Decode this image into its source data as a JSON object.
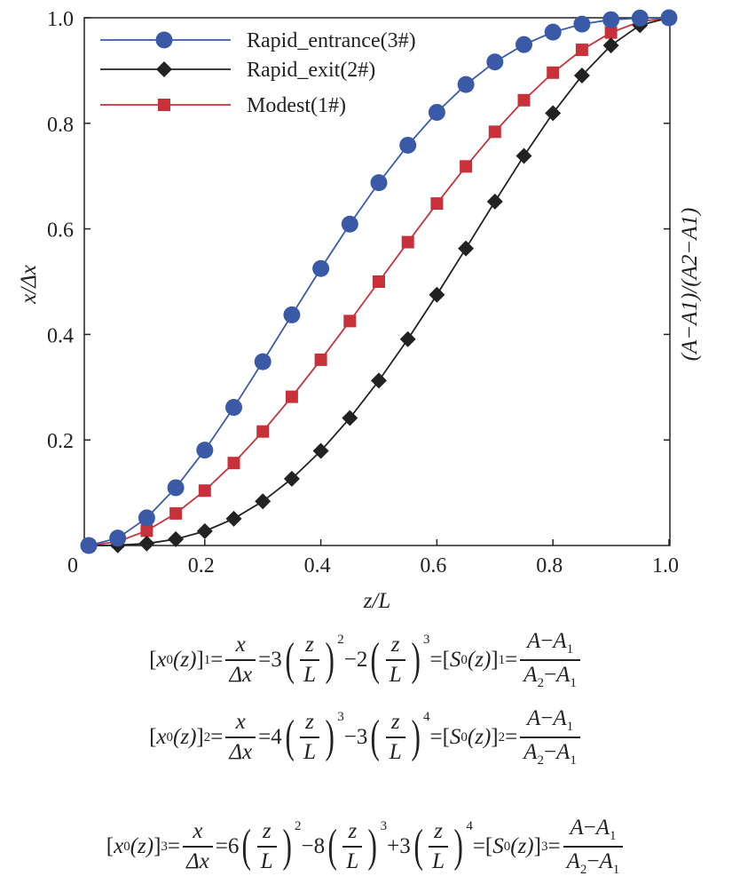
{
  "chart_data": {
    "type": "line",
    "xlabel": "z/L",
    "ylabel": "x/Δx",
    "ylabel_right": "(A−A1)/(A2−A1)",
    "xlim": [
      0,
      1
    ],
    "ylim": [
      0,
      1
    ],
    "grid": false,
    "legend_position": "top-left",
    "x_ticks": [
      "0",
      "0.2",
      "0.4",
      "0.6",
      "0.8",
      "1.0"
    ],
    "x_tick_values": [
      0,
      0.2,
      0.4,
      0.6,
      0.8,
      1.0
    ],
    "y_ticks": [
      "0.2",
      "0.4",
      "0.6",
      "0.8",
      "1.0"
    ],
    "y_tick_values": [
      0.2,
      0.4,
      0.6,
      0.8,
      1.0
    ],
    "x": [
      0,
      0.05,
      0.1,
      0.15,
      0.2,
      0.25,
      0.3,
      0.35,
      0.4,
      0.45,
      0.5,
      0.55,
      0.6,
      0.65,
      0.7,
      0.75,
      0.8,
      0.85,
      0.9,
      0.95,
      1.0
    ],
    "series": [
      {
        "name": "Rapid_entrance(3#)",
        "color": "#3a5aa8",
        "marker": "circle",
        "values": [
          0,
          0.014,
          0.0523,
          0.1095,
          0.1808,
          0.2617,
          0.3483,
          0.437,
          0.5248,
          0.609,
          0.6875,
          0.7585,
          0.8208,
          0.8735,
          0.9163,
          0.9492,
          0.9728,
          0.988,
          0.9963,
          0.9995,
          1.0
        ]
      },
      {
        "name": "Rapid_exit(2#)",
        "color": "#222222",
        "marker": "diamond",
        "values": [
          0,
          0.0005,
          0.0037,
          0.012,
          0.0272,
          0.0508,
          0.0837,
          0.1265,
          0.1792,
          0.2415,
          0.3125,
          0.391,
          0.4752,
          0.563,
          0.6517,
          0.7383,
          0.8192,
          0.8905,
          0.9477,
          0.986,
          1.0
        ]
      },
      {
        "name": "Modest(1#)",
        "color": "#c8313a",
        "marker": "square",
        "values": [
          0,
          0.0073,
          0.028,
          0.0608,
          0.104,
          0.1563,
          0.216,
          0.2818,
          0.352,
          0.4253,
          0.5,
          0.5748,
          0.648,
          0.7183,
          0.784,
          0.8438,
          0.896,
          0.9393,
          0.972,
          0.9928,
          1.0
        ]
      }
    ]
  },
  "formulas": [
    {
      "index": "1",
      "terms": [
        {
          "coef": "3",
          "pow": "2"
        },
        {
          "coef": "−2",
          "pow": "3"
        }
      ]
    },
    {
      "index": "2",
      "terms": [
        {
          "coef": "4",
          "pow": "3"
        },
        {
          "coef": "−3",
          "pow": "4"
        }
      ]
    },
    {
      "index": "3",
      "terms": [
        {
          "coef": "6",
          "pow": "2"
        },
        {
          "coef": "−8",
          "pow": "3"
        },
        {
          "coef": "+3",
          "pow": "4"
        }
      ]
    }
  ],
  "formula_parts": {
    "lhs_open": "[",
    "lhs_var": "x",
    "lhs_sub": "0",
    "lhs_arg": "(z)",
    "lhs_close": "]",
    "frac_num": "x",
    "frac_den": "Δx",
    "eq": "=",
    "ratio_num": "z",
    "ratio_den": "L",
    "rhs_var": "S",
    "rhs_sub": "0",
    "A": "A",
    "A_sub1": "1",
    "A_sub2": "2",
    "minus": "−"
  }
}
